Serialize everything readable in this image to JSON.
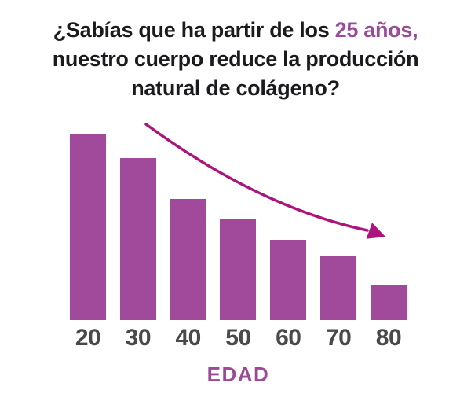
{
  "headline": {
    "line1_prefix": "¿Sabías que ha partir de los ",
    "line1_highlight": "25 años,",
    "line2": "nuestro cuerpo reduce la producción",
    "line3": "natural de colágeno?"
  },
  "chart_data": {
    "type": "bar",
    "title": "¿Sabías que ha partir de los 25 años, nuestro cuerpo reduce la producción natural de colágeno?",
    "categories": [
      "20",
      "30",
      "40",
      "50",
      "60",
      "70",
      "80"
    ],
    "values": [
      100,
      87,
      65,
      54,
      43,
      34,
      19
    ],
    "value_basis": "relative bar height, tallest bar (age 20) = 100; no y-axis shown",
    "xlabel": "EDAD",
    "ylabel": "",
    "ylim": [
      0,
      100
    ],
    "grid": false,
    "legend": false,
    "annotations": [
      {
        "type": "arrow",
        "description": "curved magenta arrow sweeping down-right from above the age-30 bar to above the age-80 bar, indicating declining collagen production"
      }
    ]
  },
  "colors": {
    "bar_fill": "#a1499b",
    "arrow": "#ab147d",
    "headline_text": "#1b1a1e",
    "headline_highlight": "#9c4a98",
    "tick_text": "#4a484b",
    "x_axis_label": "#9c4a98",
    "background": "#ffffff"
  }
}
